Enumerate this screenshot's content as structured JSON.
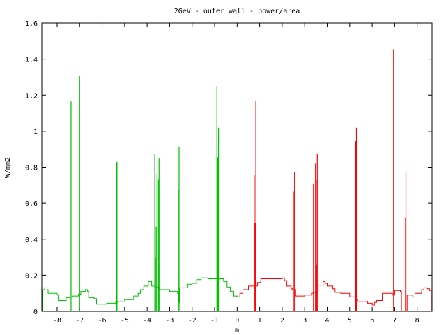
{
  "chart_data": {
    "type": "line",
    "title": "2GeV - outer wall - power/area",
    "xlabel": "m",
    "ylabel": "W/mm2",
    "xlim": [
      -8.68,
      8.66
    ],
    "ylim": [
      0,
      1.6
    ],
    "xticks": [
      -8,
      -7,
      -6,
      -5,
      -4,
      -3,
      -2,
      -1,
      0,
      1,
      2,
      3,
      4,
      5,
      6,
      7,
      8
    ],
    "yticks": [
      0,
      0.2,
      0.4,
      0.6,
      0.8,
      1,
      1.2,
      1.4,
      1.6
    ],
    "ytick_labels": [
      "0",
      "0.2",
      "0.4",
      "0.6",
      "0.8",
      "1",
      "1.2",
      "1.4",
      "1.6"
    ],
    "grid": false,
    "legend": "none",
    "series": [
      {
        "color": "#00c000",
        "baseline": [
          [
            -8.68,
            0
          ],
          [
            -8.66,
            0.12
          ],
          [
            -8.55,
            0.13
          ],
          [
            -8.45,
            0.12
          ],
          [
            -8.4,
            0.1
          ],
          [
            -8.1,
            0.1
          ],
          [
            -8.0,
            0.09
          ],
          [
            -7.95,
            0.06
          ],
          [
            -7.6,
            0.075
          ],
          [
            -7.42,
            0.08
          ],
          [
            -7.3,
            0.085
          ],
          [
            -7.05,
            0.095
          ],
          [
            -6.95,
            0.11
          ],
          [
            -6.75,
            0.12
          ],
          [
            -6.65,
            0.11
          ],
          [
            -6.6,
            0.075
          ],
          [
            -6.35,
            0.07
          ],
          [
            -6.25,
            0.04
          ],
          [
            -5.8,
            0.045
          ],
          [
            -5.4,
            0.05
          ],
          [
            -5.3,
            0.055
          ],
          [
            -5.0,
            0.065
          ],
          [
            -4.6,
            0.085
          ],
          [
            -4.4,
            0.1
          ],
          [
            -4.3,
            0.12
          ],
          [
            -4.15,
            0.14
          ],
          [
            -4.0,
            0.14
          ],
          [
            -3.95,
            0.165
          ],
          [
            -3.88,
            0.165
          ],
          [
            -3.8,
            0.14
          ],
          [
            -3.66,
            0.135
          ],
          [
            -3.45,
            0.12
          ],
          [
            -3.0,
            0.11
          ],
          [
            -2.65,
            0.1
          ],
          [
            -2.6,
            0.05
          ],
          [
            -2.55,
            0.13
          ],
          [
            -2.3,
            0.13
          ],
          [
            -2.2,
            0.15
          ],
          [
            -2.0,
            0.155
          ],
          [
            -1.85,
            0.155
          ],
          [
            -1.8,
            0.175
          ],
          [
            -1.6,
            0.185
          ],
          [
            -1.3,
            0.18
          ],
          [
            -0.75,
            0.18
          ],
          [
            -0.6,
            0.165
          ],
          [
            -0.45,
            0.135
          ],
          [
            -0.3,
            0.11
          ],
          [
            -0.15,
            0.085
          ],
          [
            0,
            0.08
          ]
        ],
        "spikes": [
          [
            -7.38,
            1.165
          ],
          [
            -7.0,
            1.305
          ],
          [
            -5.37,
            0.825
          ],
          [
            -5.34,
            0.83
          ],
          [
            -3.66,
            0.875
          ],
          [
            -3.61,
            0.3
          ],
          [
            -3.6,
            0.47
          ],
          [
            -3.56,
            0.76
          ],
          [
            -3.5,
            0.73
          ],
          [
            -3.47,
            0.85
          ],
          [
            -2.62,
            0.675
          ],
          [
            -2.58,
            0.915
          ],
          [
            -0.9,
            1.25
          ],
          [
            -0.88,
            0.75
          ],
          [
            -0.86,
            0.855
          ],
          [
            -0.83,
            1.02
          ]
        ]
      },
      {
        "color": "#ff0000",
        "baseline": [
          [
            0,
            0.08
          ],
          [
            0.12,
            0.1
          ],
          [
            0.25,
            0.12
          ],
          [
            0.45,
            0.12
          ],
          [
            0.5,
            0.14
          ],
          [
            0.75,
            0.14
          ],
          [
            0.9,
            0.16
          ],
          [
            1.05,
            0.18
          ],
          [
            1.6,
            0.18
          ],
          [
            2.0,
            0.185
          ],
          [
            2.1,
            0.17
          ],
          [
            2.2,
            0.14
          ],
          [
            2.4,
            0.125
          ],
          [
            2.45,
            0.12
          ],
          [
            2.6,
            0.085
          ],
          [
            3.0,
            0.09
          ],
          [
            3.3,
            0.1
          ],
          [
            3.38,
            0.105
          ],
          [
            3.6,
            0.145
          ],
          [
            3.75,
            0.145
          ],
          [
            3.82,
            0.165
          ],
          [
            3.9,
            0.155
          ],
          [
            4.0,
            0.14
          ],
          [
            4.25,
            0.125
          ],
          [
            4.35,
            0.105
          ],
          [
            4.6,
            0.1
          ],
          [
            5.0,
            0.08
          ],
          [
            5.25,
            0.065
          ],
          [
            5.35,
            0.055
          ],
          [
            5.8,
            0.045
          ],
          [
            6.0,
            0.035
          ],
          [
            6.1,
            0.05
          ],
          [
            6.2,
            0.06
          ],
          [
            6.45,
            0.1
          ],
          [
            6.6,
            0.1
          ],
          [
            6.9,
            0.09
          ],
          [
            7.0,
            0.115
          ],
          [
            7.25,
            0.11
          ],
          [
            7.3,
            0
          ],
          [
            7.45,
            0
          ],
          [
            7.55,
            0.09
          ],
          [
            7.8,
            0.08
          ],
          [
            7.9,
            0.1
          ],
          [
            8.1,
            0.1
          ],
          [
            8.2,
            0.12
          ],
          [
            8.3,
            0.13
          ],
          [
            8.45,
            0.125
          ],
          [
            8.55,
            0.115
          ],
          [
            8.62,
            0
          ],
          [
            8.66,
            0
          ]
        ],
        "spikes": [
          [
            0.76,
            0.755
          ],
          [
            0.8,
            0.49
          ],
          [
            0.83,
            1.17
          ],
          [
            2.5,
            0.665
          ],
          [
            2.55,
            0.775
          ],
          [
            3.39,
            0.71
          ],
          [
            3.48,
            0.82
          ],
          [
            3.51,
            0.73
          ],
          [
            3.53,
            0.26
          ],
          [
            3.56,
            0.875
          ],
          [
            5.27,
            0.945
          ],
          [
            5.3,
            1.02
          ],
          [
            6.95,
            1.455
          ],
          [
            7.48,
            0.52
          ],
          [
            7.5,
            0.77
          ]
        ]
      }
    ]
  }
}
